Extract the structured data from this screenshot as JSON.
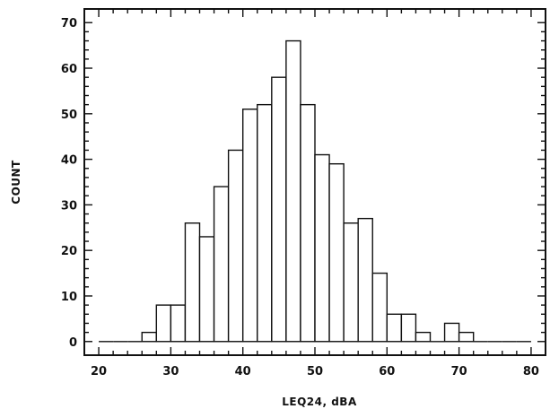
{
  "chart_data": {
    "type": "bar",
    "title": "",
    "xlabel": "LEQ24, dBA",
    "ylabel": "COUNT",
    "xlim": [
      18,
      82
    ],
    "ylim": [
      -3,
      73
    ],
    "x_ticks": [
      "20",
      "30",
      "40",
      "50",
      "60",
      "70",
      "80"
    ],
    "y_ticks": [
      "0",
      "10",
      "20",
      "30",
      "40",
      "50",
      "60",
      "70"
    ],
    "bin_width": 2,
    "bin_starts": [
      20,
      22,
      24,
      26,
      28,
      30,
      32,
      34,
      36,
      38,
      40,
      42,
      44,
      46,
      48,
      50,
      52,
      54,
      56,
      58,
      60,
      62,
      64,
      66,
      68,
      70,
      72,
      74,
      76,
      78
    ],
    "values": [
      0,
      0,
      0,
      2,
      8,
      8,
      26,
      23,
      34,
      42,
      51,
      52,
      58,
      66,
      52,
      41,
      39,
      26,
      27,
      15,
      6,
      6,
      2,
      0,
      4,
      2,
      0,
      0,
      0,
      0
    ],
    "grid": false,
    "legend": "none"
  }
}
